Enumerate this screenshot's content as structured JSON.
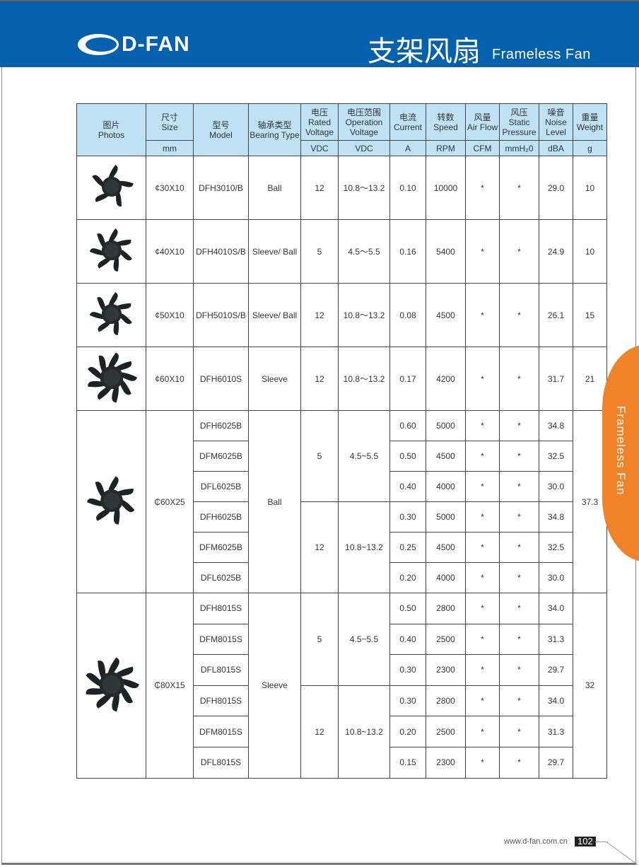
{
  "header": {
    "logo": "D-FAN",
    "title_cn": "支架风扇",
    "title_en": "Frameless Fan"
  },
  "side_tab": "Frameless Fan",
  "footer": {
    "url": "www.d-fan.com.cn",
    "page": "102"
  },
  "colors": {
    "header": "#0561ab",
    "table_header": "#bfe3f5",
    "side_tab": "#f08228"
  },
  "table": {
    "headers": [
      {
        "cn": "图片",
        "en": "Photos"
      },
      {
        "cn": "尺寸",
        "en": "Size",
        "unit": "mm"
      },
      {
        "cn": "型号",
        "en": "Model"
      },
      {
        "cn": "轴承类型",
        "en": "Bearing Type"
      },
      {
        "cn": "电压",
        "en": "Rated Voltage",
        "unit": "VDC"
      },
      {
        "cn": "电压范围",
        "en": "Operation Voltage",
        "unit": "VDC"
      },
      {
        "cn": "电流",
        "en": "Current",
        "unit": "A"
      },
      {
        "cn": "转数",
        "en": "Speed",
        "unit": "RPM"
      },
      {
        "cn": "风量",
        "en": "Air Flow",
        "unit": "CFM"
      },
      {
        "cn": "风压",
        "en": "Static Pressure",
        "unit": "mmH₂0"
      },
      {
        "cn": "噪音",
        "en": "Noise Level",
        "unit": "dBA"
      },
      {
        "cn": "重量",
        "en": "Weight",
        "unit": "g"
      }
    ],
    "single_rows": [
      {
        "size": "¢30X10",
        "model": "DFH3010/B",
        "bearing": "Ball",
        "voltage": "12",
        "range": "10.8～13.2",
        "current": "0.10",
        "speed": "10000",
        "flow": "*",
        "pressure": "*",
        "noise": "29.0",
        "weight": "10",
        "blades": 5
      },
      {
        "size": "¢40X10",
        "model": "DFH4010S/B",
        "bearing": "Sleeve/ Ball",
        "voltage": "5",
        "range": "4.5～5.5",
        "current": "0.16",
        "speed": "5400",
        "flow": "*",
        "pressure": "*",
        "noise": "24.9",
        "weight": "10",
        "blades": 7
      },
      {
        "size": "¢50X10",
        "model": "DFH5010S/B",
        "bearing": "Sleeve/ Ball",
        "voltage": "12",
        "range": "10.8～13.2",
        "current": "0.08",
        "speed": "4500",
        "flow": "*",
        "pressure": "*",
        "noise": "26.1",
        "weight": "15",
        "blades": 7
      },
      {
        "size": "¢60X10",
        "model": "DFH6010S",
        "bearing": "Sleeve",
        "voltage": "12",
        "range": "10.8～13.2",
        "current": "0.17",
        "speed": "4200",
        "flow": "*",
        "pressure": "*",
        "noise": "31.7",
        "weight": "21",
        "blades": 9
      }
    ],
    "groups": [
      {
        "size": "₵60X25",
        "bearing": "Ball",
        "weight": "37.3",
        "blades": 7,
        "voltage_groups": [
          {
            "voltage": "5",
            "range": "4.5~5.5"
          },
          {
            "voltage": "12",
            "range": "10.8~13.2"
          }
        ],
        "rows": [
          {
            "model": "DFH6025B",
            "current": "0.60",
            "speed": "5000",
            "flow": "*",
            "pressure": "*",
            "noise": "34.8"
          },
          {
            "model": "DFM6025B",
            "current": "0.50",
            "speed": "4500",
            "flow": "*",
            "pressure": "*",
            "noise": "32.5"
          },
          {
            "model": "DFL6025B",
            "current": "0.40",
            "speed": "4000",
            "flow": "*",
            "pressure": "*",
            "noise": "30.0"
          },
          {
            "model": "DFH6025B",
            "current": "0.30",
            "speed": "5000",
            "flow": "*",
            "pressure": "*",
            "noise": "34.8"
          },
          {
            "model": "DFM6025B",
            "current": "0.25",
            "speed": "4500",
            "flow": "*",
            "pressure": "*",
            "noise": "32.5"
          },
          {
            "model": "DFL6025B",
            "current": "0.20",
            "speed": "4000",
            "flow": "*",
            "pressure": "*",
            "noise": "30.0"
          }
        ]
      },
      {
        "size": "₵80X15",
        "bearing": "Sleeve",
        "weight": "32",
        "blades": 9,
        "voltage_groups": [
          {
            "voltage": "5",
            "range": "4.5~5.5"
          },
          {
            "voltage": "12",
            "range": "10.8~13.2"
          }
        ],
        "rows": [
          {
            "model": "DFH8015S",
            "current": "0.50",
            "speed": "2800",
            "flow": "*",
            "pressure": "*",
            "noise": "34.0"
          },
          {
            "model": "DFM8015S",
            "current": "0.40",
            "speed": "2500",
            "flow": "*",
            "pressure": "*",
            "noise": "31.3"
          },
          {
            "model": "DFL8015S",
            "current": "0.30",
            "speed": "2300",
            "flow": "*",
            "pressure": "*",
            "noise": "29.7"
          },
          {
            "model": "DFH8015S",
            "current": "0.30",
            "speed": "2800",
            "flow": "*",
            "pressure": "*",
            "noise": "34.0"
          },
          {
            "model": "DFM8015S",
            "current": "0.20",
            "speed": "2500",
            "flow": "*",
            "pressure": "*",
            "noise": "31.3"
          },
          {
            "model": "DFL8015S",
            "current": "0.15",
            "speed": "2300",
            "flow": "*",
            "pressure": "*",
            "noise": "29.7"
          }
        ]
      }
    ]
  }
}
